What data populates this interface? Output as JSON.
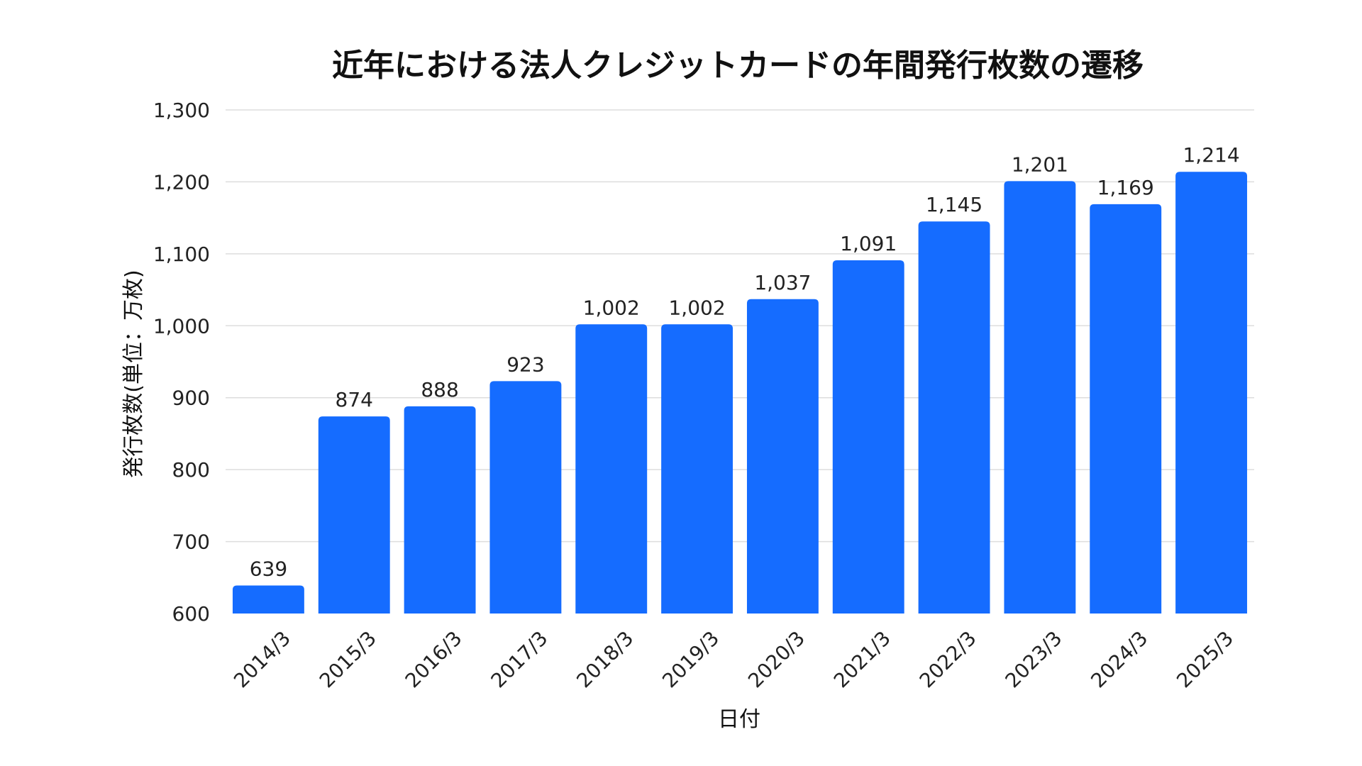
{
  "chart_data": {
    "type": "bar",
    "title": "近年における法人クレジットカードの年間発行枚数の遷移",
    "xlabel": "日付",
    "ylabel": "発行枚数(単位：万枚)",
    "categories": [
      "2014/3",
      "2015/3",
      "2016/3",
      "2017/3",
      "2018/3",
      "2019/3",
      "2020/3",
      "2021/3",
      "2022/3",
      "2023/3",
      "2024/3",
      "2025/3"
    ],
    "values": [
      639,
      874,
      888,
      923,
      1002,
      1002,
      1037,
      1091,
      1145,
      1201,
      1169,
      1214
    ],
    "data_labels": [
      "639",
      "874",
      "888",
      "923",
      "1,002",
      "1,002",
      "1,037",
      "1,091",
      "1,145",
      "1,201",
      "1,169",
      "1,214"
    ],
    "ylim": [
      600,
      1300
    ],
    "yticks": [
      600,
      700,
      800,
      900,
      1000,
      1100,
      1200,
      1300
    ],
    "ytick_labels": [
      "600",
      "700",
      "800",
      "900",
      "1,000",
      "1,100",
      "1,200",
      "1,300"
    ],
    "grid": true,
    "legend": "none",
    "bar_color": "#156cff"
  }
}
